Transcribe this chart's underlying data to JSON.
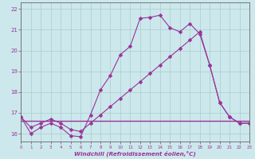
{
  "xlabel": "Windchill (Refroidissement éolien,°C)",
  "xlim": [
    0,
    23
  ],
  "ylim": [
    15.6,
    22.3
  ],
  "yticks": [
    16,
    17,
    18,
    19,
    20,
    21,
    22
  ],
  "xticks": [
    0,
    1,
    2,
    3,
    4,
    5,
    6,
    7,
    8,
    9,
    10,
    11,
    12,
    13,
    14,
    15,
    16,
    17,
    18,
    19,
    20,
    21,
    22,
    23
  ],
  "background_color": "#cce8ec",
  "grid_color": "#aacccc",
  "line_color": "#993399",
  "series1_x": [
    0,
    1,
    2,
    3,
    4,
    5,
    6,
    7,
    8,
    9,
    10,
    11,
    12,
    13,
    14,
    15,
    16,
    17,
    18,
    19,
    20,
    21,
    22,
    23
  ],
  "series1_y": [
    16.8,
    16.0,
    16.3,
    16.5,
    16.3,
    15.9,
    15.85,
    16.9,
    18.1,
    18.8,
    19.8,
    20.2,
    21.55,
    21.6,
    21.7,
    21.1,
    20.9,
    21.3,
    20.8,
    19.3,
    17.5,
    16.8,
    16.5,
    16.5
  ],
  "series2_x": [
    0,
    1,
    2,
    3,
    4,
    5,
    6,
    7,
    8,
    9,
    10,
    11,
    12,
    13,
    14,
    15,
    16,
    17,
    18,
    19,
    20,
    21,
    22,
    23
  ],
  "series2_y": [
    16.8,
    16.3,
    16.5,
    16.7,
    16.5,
    16.2,
    16.1,
    16.5,
    16.9,
    17.3,
    17.7,
    18.1,
    18.5,
    18.9,
    19.3,
    19.7,
    20.1,
    20.5,
    20.9,
    19.3,
    17.5,
    16.8,
    16.5,
    16.5
  ],
  "series3_x": [
    0,
    23
  ],
  "series3_y": [
    16.6,
    16.6
  ],
  "markersize": 2.5
}
